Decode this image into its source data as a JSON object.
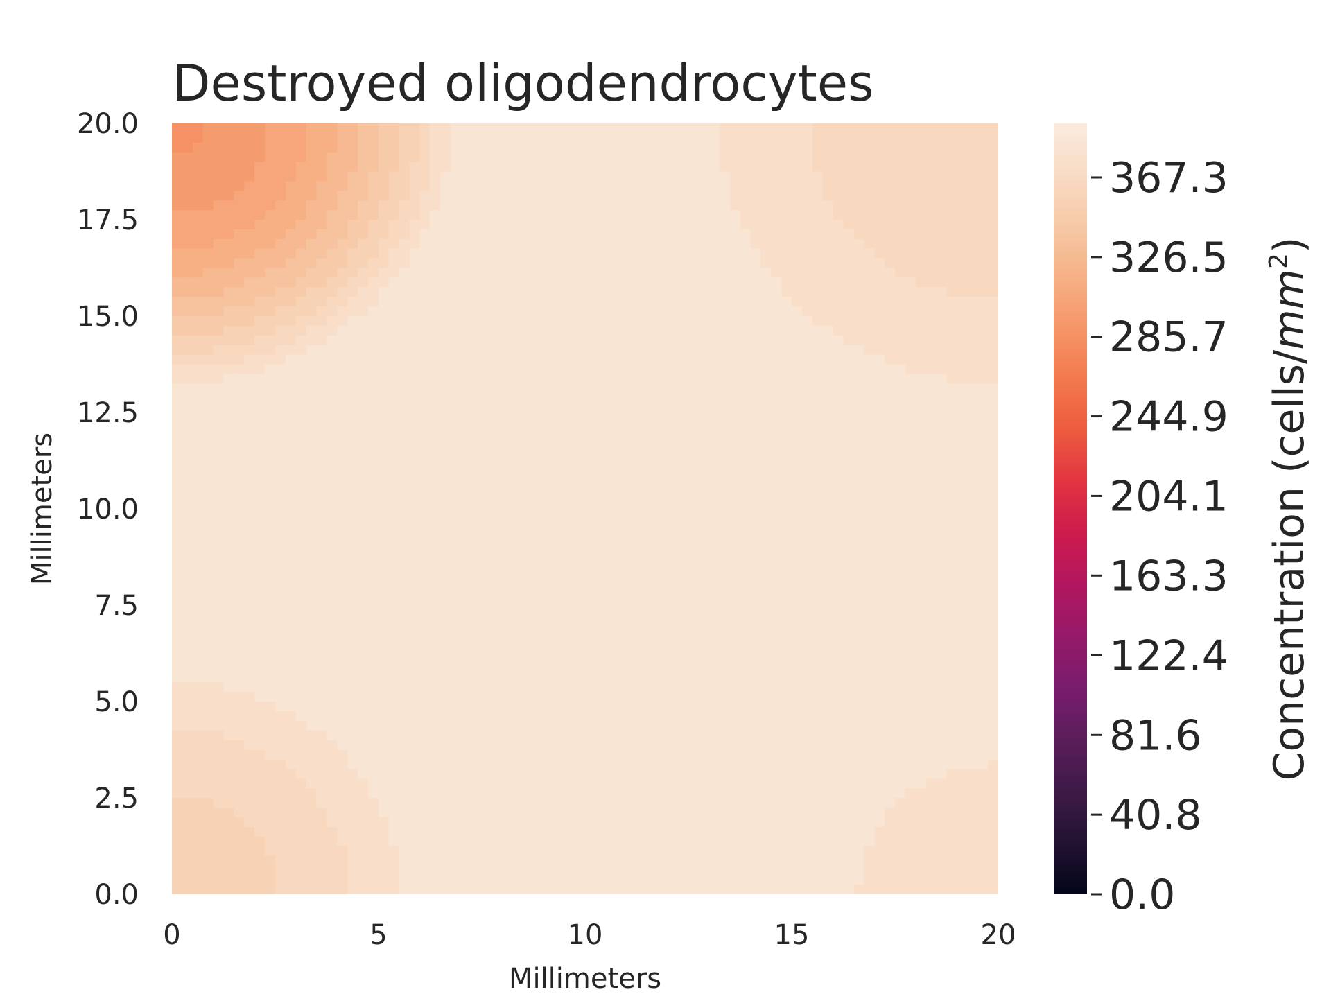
{
  "chart_data": {
    "type": "heatmap",
    "title": "Destroyed oligodendrocytes",
    "xlabel": "Millimeters",
    "ylabel": "Millimeters",
    "xlim": [
      0,
      20
    ],
    "ylim": [
      0,
      20
    ],
    "x_ticks": [
      "0",
      "5",
      "10",
      "15",
      "20"
    ],
    "y_ticks": [
      "0.0",
      "2.5",
      "5.0",
      "7.5",
      "10.0",
      "12.5",
      "15.0",
      "17.5",
      "20.0"
    ],
    "grid": false,
    "colormap": "rocket",
    "colorbar": {
      "label_main": "Concentration (cells/",
      "label_unit": "mm",
      "label_power": "2",
      "label_close": ")",
      "range": [
        0,
        395
      ],
      "ticks": [
        "0.0",
        "40.8",
        "81.6",
        "122.4",
        "163.3",
        "204.1",
        "244.9",
        "285.7",
        "326.5",
        "367.3"
      ],
      "colors": [
        "#03051a",
        "#221331",
        "#3e1a47",
        "#5a1e5a",
        "#781c6d",
        "#951a69",
        "#b1165f",
        "#cc1b4e",
        "#e13342",
        "#ed5a3f",
        "#f3784c",
        "#f59568",
        "#f6b084",
        "#f7c8a6",
        "#f8dbc4",
        "#faebdd"
      ]
    },
    "peaks": [
      {
        "x": 0,
        "y": 20,
        "value": 290,
        "radius_mm": 6.9
      },
      {
        "x": 0,
        "y": 0,
        "value": 355,
        "radius_mm": 6.0
      },
      {
        "x": 20,
        "y": 20,
        "value": 362,
        "radius_mm": 7.6
      },
      {
        "x": 20,
        "y": 0,
        "value": 375,
        "radius_mm": 4.7
      }
    ],
    "background_value": 385
  }
}
